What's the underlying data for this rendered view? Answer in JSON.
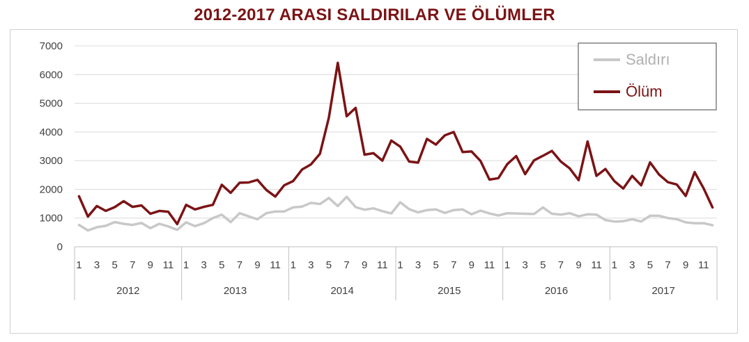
{
  "title": "2012-2017 ARASI SALDIRILAR VE ÖLÜMLER",
  "colors": {
    "title": "#7b1315",
    "saldiri": "#c8c8c8",
    "olum": "#7b1315",
    "grid": "#d9d9d9",
    "axis": "#bfbfbf",
    "text": "#404040",
    "legend_saldiri_text": "#b0b0b0"
  },
  "chart_data": {
    "type": "line",
    "title": "2012-2017 ARASI SALDIRILAR VE ÖLÜMLER",
    "ylim": [
      0,
      7000
    ],
    "y_ticks": [
      0,
      1000,
      2000,
      3000,
      4000,
      5000,
      6000,
      7000
    ],
    "grid": true,
    "legend_position": "top-right",
    "years": [
      "2012",
      "2013",
      "2014",
      "2015",
      "2016",
      "2017"
    ],
    "month_tick_labels": [
      "1",
      "3",
      "5",
      "7",
      "9",
      "11"
    ],
    "series": [
      {
        "name": "Saldırı",
        "values": [
          760,
          570,
          680,
          730,
          860,
          800,
          760,
          830,
          650,
          800,
          710,
          590,
          850,
          720,
          820,
          1000,
          1120,
          860,
          1170,
          1060,
          960,
          1170,
          1230,
          1230,
          1370,
          1400,
          1530,
          1490,
          1700,
          1420,
          1740,
          1380,
          1290,
          1340,
          1240,
          1160,
          1550,
          1310,
          1200,
          1280,
          1300,
          1180,
          1280,
          1300,
          1130,
          1260,
          1160,
          1090,
          1170,
          1160,
          1150,
          1140,
          1370,
          1150,
          1120,
          1170,
          1060,
          1130,
          1120,
          930,
          880,
          890,
          960,
          880,
          1080,
          1080,
          1000,
          960,
          850,
          820,
          820,
          750
        ]
      },
      {
        "name": "Ölüm",
        "values": [
          1760,
          1050,
          1420,
          1250,
          1380,
          1590,
          1390,
          1440,
          1150,
          1250,
          1220,
          790,
          1460,
          1300,
          1390,
          1460,
          2160,
          1880,
          2230,
          2240,
          2330,
          1980,
          1750,
          2140,
          2290,
          2690,
          2870,
          3240,
          4500,
          6410,
          4550,
          4840,
          3210,
          3260,
          3000,
          3700,
          3490,
          2970,
          2930,
          3760,
          3560,
          3880,
          4000,
          3300,
          3320,
          2990,
          2340,
          2390,
          2880,
          3160,
          2530,
          3010,
          3170,
          3340,
          2970,
          2730,
          2320,
          3670,
          2470,
          2710,
          2290,
          2030,
          2470,
          2140,
          2940,
          2520,
          2250,
          2170,
          1770,
          2600,
          2040,
          1370
        ]
      }
    ]
  }
}
